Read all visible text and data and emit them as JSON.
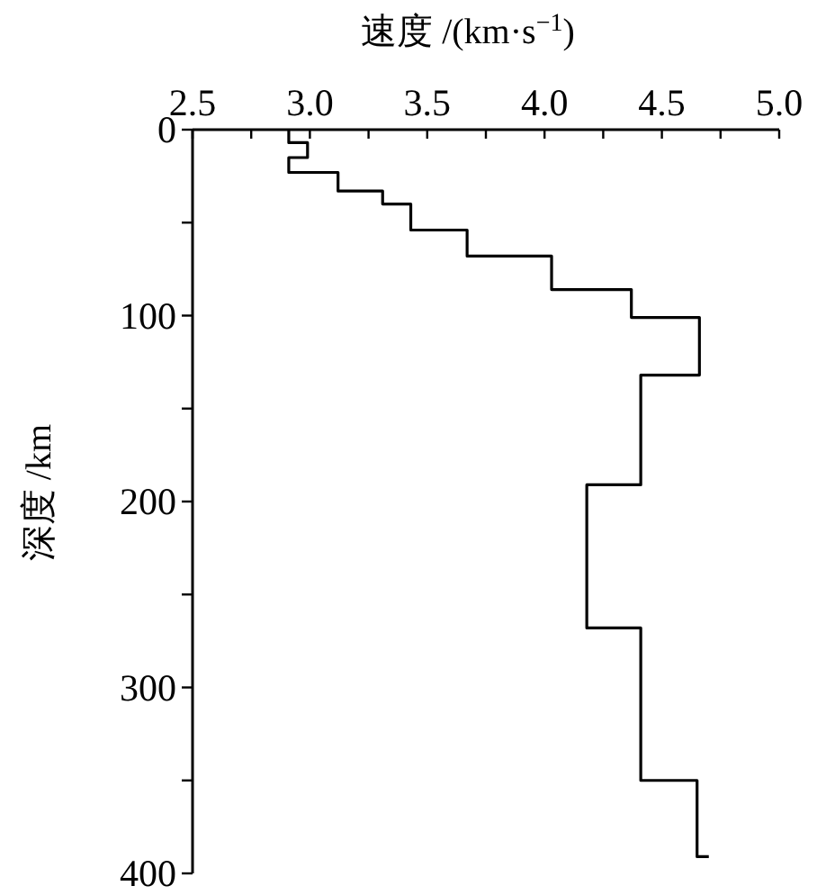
{
  "chart_data": {
    "type": "line",
    "xlabel": "速度 /(km·s$^{−1}$)",
    "ylabel": "深度 /km",
    "series": [
      {
        "color": "#000000",
        "x": [
          2.91,
          2.91,
          2.99,
          2.99,
          2.91,
          2.91,
          3.12,
          3.12,
          3.31,
          3.31,
          3.43,
          3.43,
          3.67,
          3.67,
          4.03,
          4.03,
          4.37,
          4.37,
          4.66,
          4.66,
          4.41,
          4.41,
          4.18,
          4.18,
          4.41,
          4.41,
          4.65,
          4.65,
          4.7
        ],
        "values": [
          0,
          7,
          7,
          15,
          15,
          23,
          23,
          33,
          33,
          40,
          40,
          54,
          54,
          68,
          68,
          86,
          86,
          101,
          101,
          132,
          132,
          191,
          191,
          268,
          268,
          350,
          350,
          391,
          391
        ]
      }
    ],
    "xlim": [
      2.5,
      5.0
    ],
    "xticks": [
      2.5,
      {
        "value": 2.75,
        "label": null
      },
      {
        "value": 3,
        "label": "3.0"
      },
      {
        "value": 3.25,
        "label": null
      },
      3.5,
      {
        "value": 3.75,
        "label": null
      },
      {
        "value": 4,
        "label": "4.0"
      },
      {
        "value": 4.25,
        "label": null
      },
      4.5,
      {
        "value": 4.75,
        "label": null
      },
      {
        "value": 5,
        "label": "5.0"
      }
    ],
    "ylim": [
      400,
      0
    ],
    "yticks": [
      0,
      {
        "value": 50,
        "label": null
      },
      100,
      {
        "value": 150,
        "label": null
      },
      200,
      {
        "value": 250,
        "label": null
      },
      300,
      {
        "value": 350,
        "label": null
      },
      400
    ],
    "grid": false,
    "marker": "none",
    "line_style": "solid"
  }
}
